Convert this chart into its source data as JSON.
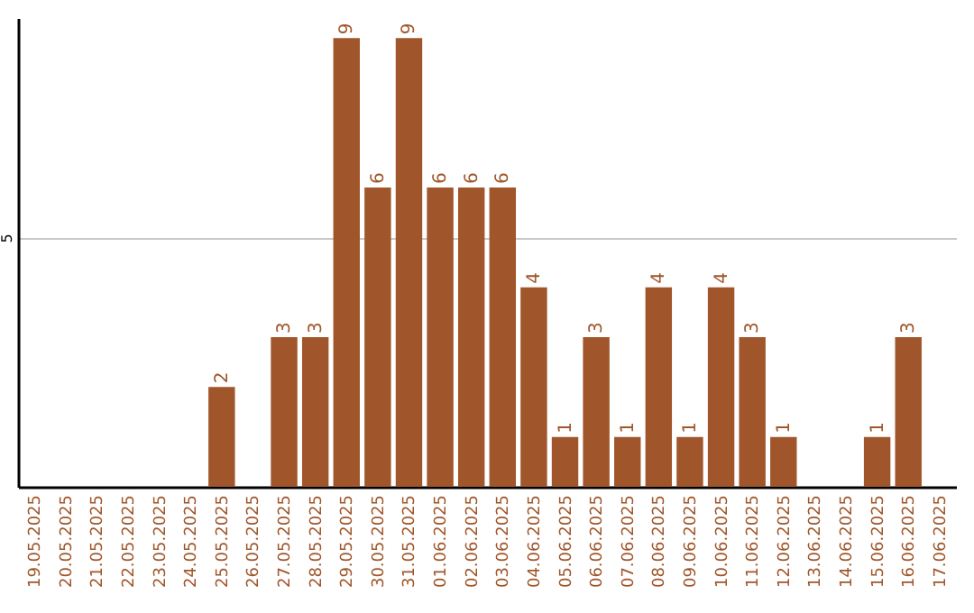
{
  "chart_data": {
    "type": "bar",
    "categories": [
      "19.05.2025",
      "20.05.2025",
      "21.05.2025",
      "22.05.2025",
      "23.05.2025",
      "24.05.2025",
      "25.05.2025",
      "26.05.2025",
      "27.05.2025",
      "28.05.2025",
      "29.05.2025",
      "30.05.2025",
      "31.05.2025",
      "01.06.2025",
      "02.06.2025",
      "03.06.2025",
      "04.06.2025",
      "05.06.2025",
      "06.06.2025",
      "07.06.2025",
      "08.06.2025",
      "09.06.2025",
      "10.06.2025",
      "11.06.2025",
      "12.06.2025",
      "13.06.2025",
      "14.06.2025",
      "15.06.2025",
      "16.06.2025",
      "17.06.2025"
    ],
    "values": [
      0,
      0,
      0,
      0,
      0,
      0,
      2,
      0,
      3,
      3,
      9,
      6,
      9,
      6,
      6,
      6,
      4,
      1,
      3,
      1,
      4,
      1,
      4,
      3,
      1,
      0,
      0,
      1,
      3,
      0
    ],
    "value_labels": [
      null,
      null,
      null,
      null,
      null,
      null,
      "2",
      null,
      "3",
      "3",
      "9",
      "6",
      "9",
      "6",
      "6",
      "6",
      "4",
      "1",
      "3",
      "1",
      "4",
      "1",
      "4",
      "3",
      "1",
      null,
      null,
      "1",
      "3",
      null
    ],
    "color": "#a0562a",
    "ylim": [
      0,
      9.4
    ],
    "yticks": [
      5
    ],
    "grid": "y"
  }
}
